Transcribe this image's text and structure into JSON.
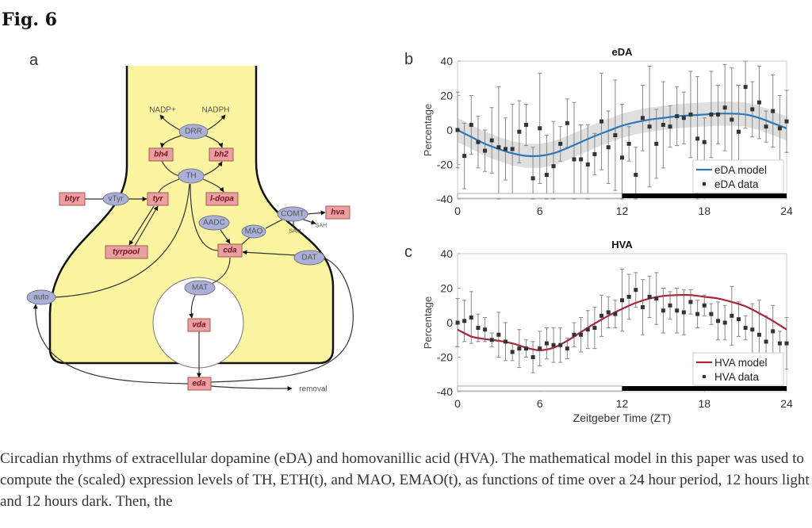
{
  "figure": {
    "title": "Fig. 6"
  },
  "caption": "Circadian rhythms of extracellular dopamine (eDA) and homovanillic acid (HVA). The mathematical model in this paper was used to compute the (scaled) expression levels of TH, ETH(t), and MAO, EMAO(t), as functions of time over a 24 hour period, 12 hours light and 12 hours dark. Then, the",
  "diagram": {
    "panel_label": "a",
    "colors": {
      "cell": "#fbf4a0",
      "enzyme": "#aab0d8",
      "metabolite": "#e8a0a0",
      "line": "#111111"
    },
    "cofactors": {
      "nadp": "NADP+",
      "nadph": "NADPH",
      "sam": "SAM",
      "sah": "SAH",
      "removal": "removal"
    },
    "enzymes": {
      "drr": "DRR",
      "th": "TH",
      "vtyr": "vTyr",
      "aadc": "AADC",
      "mao": "MAO",
      "comt": "COMT",
      "dat": "DAT",
      "mat": "MAT",
      "auto": "auto"
    },
    "metabolites": {
      "bh4": "bh4",
      "bh2": "bh2",
      "btyr": "btyr",
      "tyr": "tyr",
      "ldopa": "l-dopa",
      "tyrpool": "tyrpool",
      "cda": "cda",
      "hva": "hva",
      "vda": "vda",
      "eda": "eda"
    }
  },
  "chart_data": [
    {
      "panel_label": "b",
      "type": "line",
      "title": "eDA",
      "xlabel": "",
      "ylabel": "Percentage",
      "xlim": [
        0,
        24
      ],
      "ylim": [
        -40,
        40
      ],
      "xticks": [
        "0",
        "6",
        "12",
        "18",
        "24"
      ],
      "yticks": [
        "-40",
        "-20",
        "0",
        "20",
        "40"
      ],
      "light_dark_bar": {
        "light": [
          0,
          12
        ],
        "dark": [
          12,
          24
        ]
      },
      "legend_position": "bottom-right",
      "series": [
        {
          "name": "eDA model",
          "kind": "line",
          "color": "#2e78b8",
          "band_color": "#d9d9d9",
          "band_halfwidth": 7,
          "x": [
            0,
            1,
            2,
            3,
            4,
            5,
            6,
            7,
            8,
            9,
            10,
            11,
            12,
            13,
            14,
            15,
            16,
            17,
            18,
            19,
            20,
            21,
            22,
            23,
            24
          ],
          "y": [
            0,
            -4,
            -8,
            -11,
            -13.5,
            -15,
            -15,
            -13.5,
            -10.5,
            -7,
            -3.5,
            -0.5,
            2.5,
            4.5,
            6,
            7,
            8,
            8.5,
            9,
            9.5,
            9.5,
            9,
            7,
            4,
            1
          ]
        },
        {
          "name": "eDA data",
          "kind": "errorbar",
          "color": "#333333",
          "x": [
            0,
            0.5,
            1,
            1.5,
            2,
            2.5,
            3,
            3.5,
            4,
            4.5,
            5,
            5.5,
            6,
            6.5,
            7,
            7.5,
            8,
            8.5,
            9,
            9.5,
            10,
            10.5,
            11,
            11.5,
            12,
            12.5,
            13,
            13.5,
            14,
            14.5,
            15,
            15.5,
            16,
            16.5,
            17,
            17.5,
            18,
            18.5,
            19,
            19.5,
            20,
            20.5,
            21,
            21.5,
            22,
            22.5,
            23,
            23.5,
            24
          ],
          "y": [
            0,
            -15,
            3,
            -7,
            -12,
            -6,
            -10,
            -11,
            -11,
            -1,
            3,
            -28,
            1,
            -26,
            -21,
            -8,
            4,
            -17,
            -17,
            -20,
            -14,
            5,
            -10,
            -3,
            -16,
            -8,
            -26,
            7,
            2,
            -8,
            3,
            2,
            8,
            7,
            9,
            -5,
            -7,
            9,
            9,
            13,
            6,
            -1,
            25,
            12,
            16,
            2,
            11,
            1,
            5
          ],
          "err": [
            22,
            19,
            17,
            15,
            12,
            19,
            35,
            18,
            26,
            18,
            12,
            18,
            32,
            23,
            26,
            10,
            14,
            33,
            20,
            23,
            12,
            28,
            21,
            32,
            31,
            10,
            16,
            19,
            35,
            20,
            25,
            12,
            17,
            15,
            25,
            36,
            14,
            25,
            17,
            25,
            30,
            27,
            24,
            16,
            21,
            9,
            21,
            19,
            18
          ]
        }
      ]
    },
    {
      "panel_label": "c",
      "type": "line",
      "title": "HVA",
      "xlabel": "Zeitgeber Time (ZT)",
      "ylabel": "Percentage",
      "xlim": [
        0,
        24
      ],
      "ylim": [
        -40,
        40
      ],
      "xticks": [
        "0",
        "6",
        "12",
        "18",
        "24"
      ],
      "yticks": [
        "-40",
        "-20",
        "0",
        "20",
        "40"
      ],
      "light_dark_bar": {
        "light": [
          0,
          12
        ],
        "dark": [
          12,
          24
        ]
      },
      "legend_position": "bottom-right",
      "series": [
        {
          "name": "HVA model",
          "kind": "line",
          "color": "#a8283a",
          "x": [
            0,
            1,
            2,
            3,
            4,
            5,
            6,
            7,
            8,
            9,
            10,
            11,
            12,
            13,
            14,
            15,
            16,
            17,
            18,
            19,
            20,
            21,
            22,
            23,
            24
          ],
          "y": [
            -4,
            -8,
            -9.5,
            -10.5,
            -12,
            -14.5,
            -16,
            -14.5,
            -10.5,
            -5.5,
            -0.5,
            4,
            8,
            11.5,
            14,
            15.5,
            16,
            16,
            15,
            14,
            12,
            9.5,
            5.5,
            1,
            -4
          ]
        },
        {
          "name": "HVA data",
          "kind": "errorbar",
          "color": "#333333",
          "x": [
            0,
            0.5,
            1,
            1.5,
            2,
            2.5,
            3,
            3.5,
            4,
            4.5,
            5,
            5.5,
            6,
            6.5,
            7,
            7.5,
            8,
            8.5,
            9,
            9.5,
            10,
            10.5,
            11,
            11.5,
            12,
            12.5,
            13,
            13.5,
            14,
            14.5,
            15,
            15.5,
            16,
            16.5,
            17,
            17.5,
            18,
            18.5,
            19,
            19.5,
            20,
            20.5,
            21,
            21.5,
            22,
            22.5,
            23,
            23.5,
            24
          ],
          "y": [
            0,
            1,
            3,
            -3,
            -4,
            -10,
            -7,
            -11,
            -17,
            -15,
            -15,
            -20,
            -15,
            -12,
            -13,
            -13,
            -15,
            -7,
            -7,
            -4,
            -3,
            4,
            6,
            5,
            13,
            15,
            19,
            9,
            15,
            14,
            7,
            10,
            7,
            6,
            12,
            5,
            10,
            5,
            1,
            0,
            4,
            2,
            -3,
            -4,
            -7,
            -11,
            -5,
            -12,
            -12
          ],
          "err": [
            14,
            12,
            15,
            8,
            7,
            4,
            13,
            11,
            5,
            11,
            5,
            9,
            10,
            9,
            10,
            10,
            6,
            7,
            10,
            11,
            12,
            12,
            9,
            8,
            18,
            13,
            10,
            16,
            12,
            15,
            13,
            8,
            13,
            13,
            7,
            8,
            6,
            6,
            11,
            10,
            17,
            10,
            7,
            15,
            20,
            15,
            15,
            7,
            15
          ]
        }
      ]
    }
  ]
}
